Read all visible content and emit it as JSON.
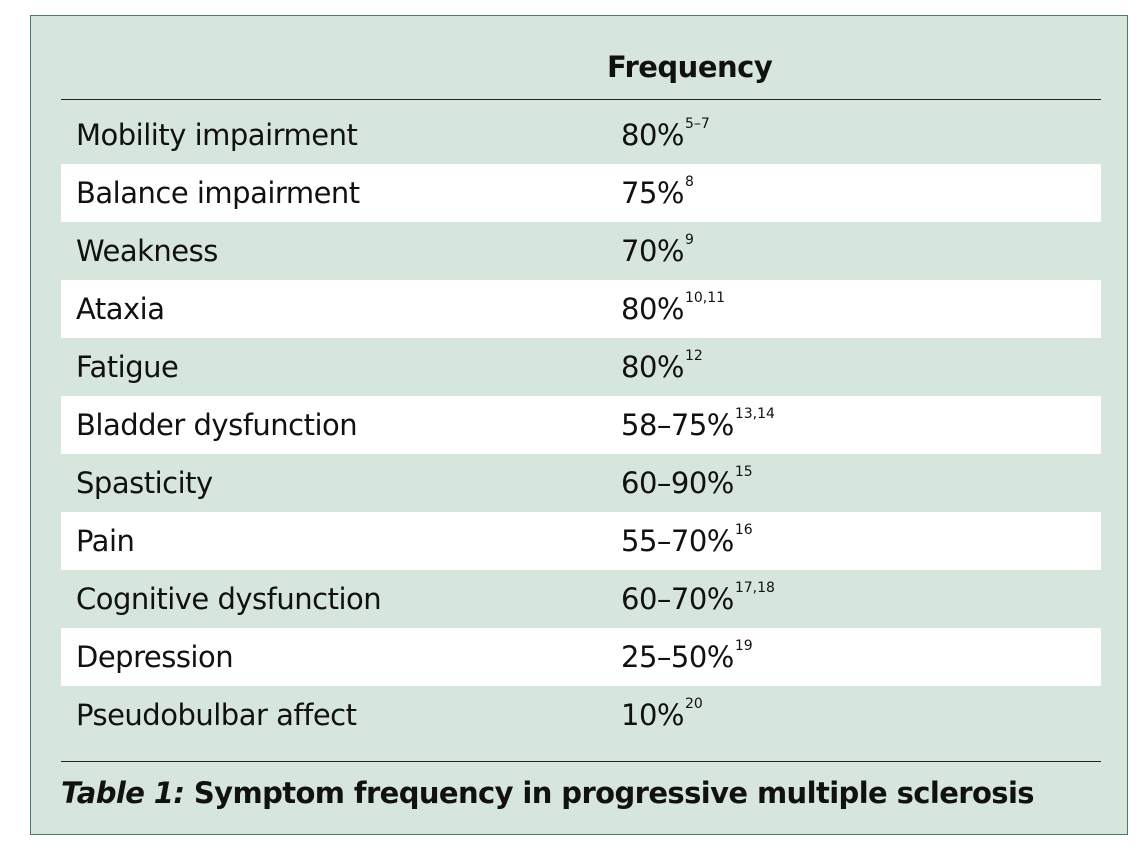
{
  "table": {
    "header": "Frequency",
    "rows": [
      {
        "symptom": "Mobility impairment",
        "frequency": "80%",
        "ref": "5–7"
      },
      {
        "symptom": "Balance impairment",
        "frequency": "75%",
        "ref": "8"
      },
      {
        "symptom": "Weakness",
        "frequency": "70%",
        "ref": "9"
      },
      {
        "symptom": "Ataxia",
        "frequency": "80%",
        "ref": "10,11"
      },
      {
        "symptom": "Fatigue",
        "frequency": "80%",
        "ref": "12"
      },
      {
        "symptom": "Bladder dysfunction",
        "frequency": "58–75%",
        "ref": "13,14"
      },
      {
        "symptom": "Spasticity",
        "frequency": "60–90%",
        "ref": "15"
      },
      {
        "symptom": "Pain",
        "frequency": "55–70%",
        "ref": "16"
      },
      {
        "symptom": "Cognitive dysfunction",
        "frequency": "60–70%",
        "ref": "17,18"
      },
      {
        "symptom": "Depression",
        "frequency": "25–50%",
        "ref": "19"
      },
      {
        "symptom": "Pseudobulbar affect",
        "frequency": "10%",
        "ref": "20"
      }
    ]
  },
  "caption": {
    "label": "Table 1:",
    "text": " Symptom frequency in progressive multiple sclerosis"
  }
}
